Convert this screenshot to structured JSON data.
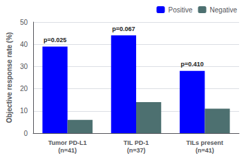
{
  "chart_data": {
    "type": "bar",
    "ylabel": "Objective response rate (%)",
    "categories": [
      "Tumor PD-L1\n(n=41)",
      "TIL PD-1\n(n=37)",
      "TILs present\n(n=41)"
    ],
    "series": [
      {
        "name": "Positive",
        "color": "#0000ff",
        "values": [
          39,
          44,
          28
        ],
        "annotations": [
          "p=0.025",
          "p=0.067",
          "p=0.410"
        ]
      },
      {
        "name": "Negative",
        "color": "#4d7070",
        "values": [
          6,
          14,
          11
        ]
      }
    ],
    "ylim": [
      0,
      50
    ],
    "yticks": [
      0,
      10,
      20,
      30,
      40,
      50
    ],
    "grid": true,
    "legend": "upper right"
  }
}
